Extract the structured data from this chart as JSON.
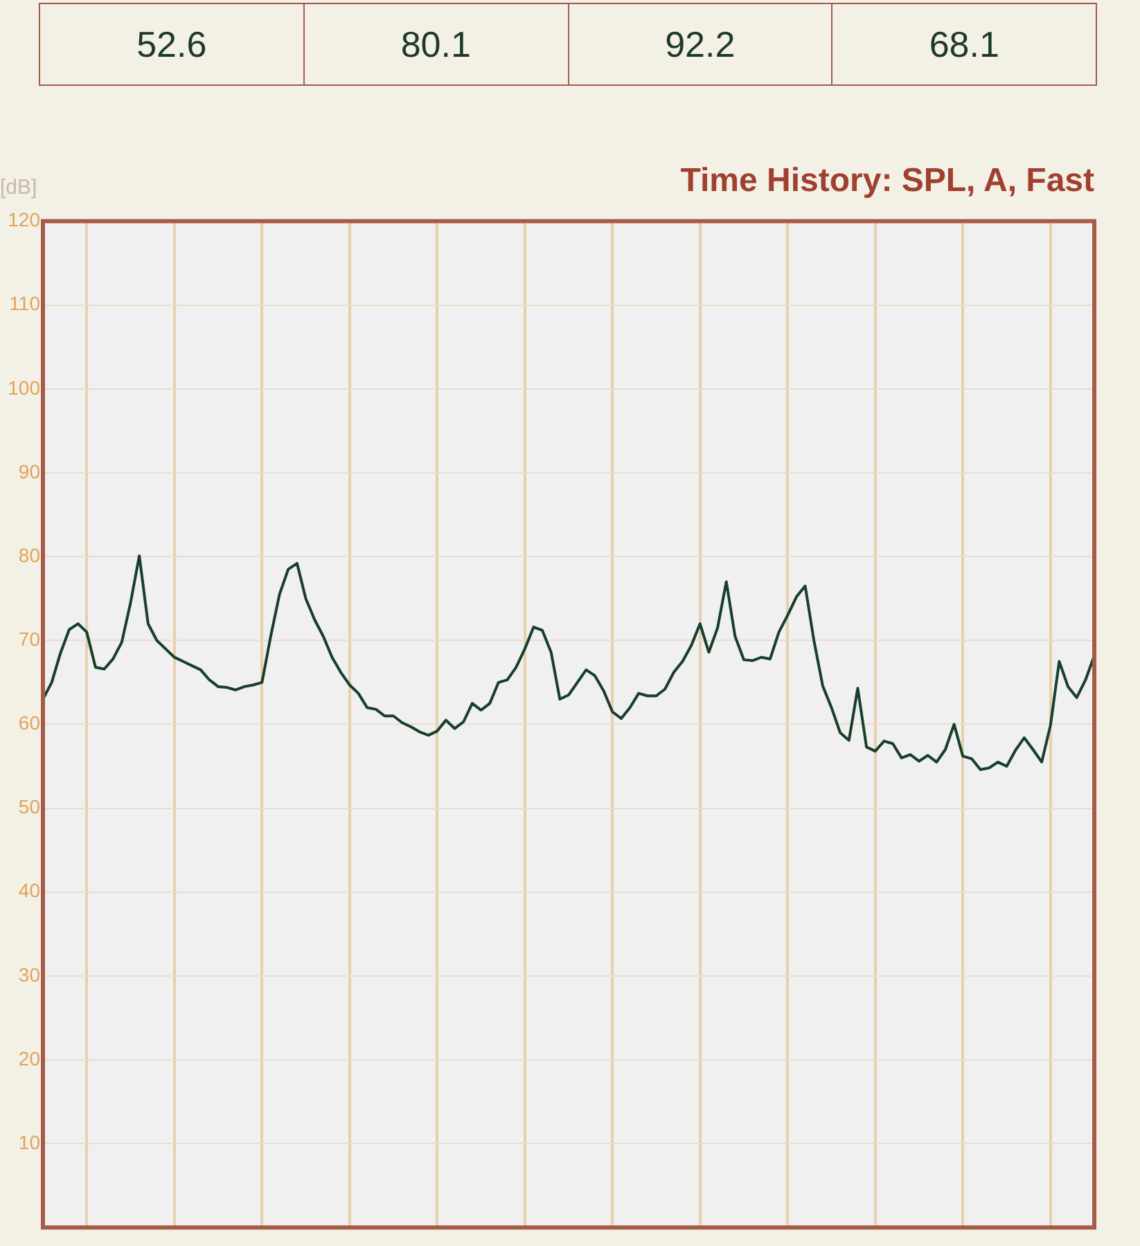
{
  "chart_data": [
    {
      "type": "other",
      "annotations": [
        "52.6",
        "80.1",
        "92.2",
        "68.1"
      ]
    },
    {
      "type": "line",
      "title": "Time History: SPL, A, Fast",
      "ylabel": "[dB]",
      "color": "#173f2b",
      "grid": true,
      "marker": "none",
      "line_style": "solid",
      "tick_labels": "y",
      "categories": [
        null,
        null,
        null,
        null,
        null,
        null,
        null,
        null,
        null,
        null,
        null,
        null,
        null,
        null,
        null,
        null,
        null,
        null,
        null,
        null,
        null,
        null,
        null,
        null,
        null,
        null,
        null,
        null,
        null,
        null,
        null,
        null,
        null,
        null,
        null,
        null,
        null,
        null,
        null,
        null,
        null,
        null,
        null,
        null,
        null,
        null,
        null,
        null,
        null,
        null,
        null,
        null,
        null,
        null,
        null,
        null,
        null,
        null,
        null,
        null,
        null,
        null,
        null,
        null,
        null,
        null,
        null,
        null,
        null,
        null,
        null,
        null,
        null,
        null,
        null,
        null,
        null,
        null,
        null,
        null,
        null,
        null,
        null,
        null,
        null,
        null,
        null,
        null,
        null,
        null,
        null,
        null,
        null,
        null,
        null,
        null,
        null,
        null,
        null,
        null,
        null,
        null,
        null,
        null,
        null,
        null,
        null,
        null,
        null,
        null,
        null,
        null,
        null,
        null,
        null,
        null,
        null,
        null,
        null,
        null,
        null
      ],
      "ylim": [
        0,
        120
      ],
      "yticks": [
        10,
        20,
        30,
        40,
        50,
        60,
        70,
        80,
        90,
        100,
        110,
        120
      ],
      "values": [
        63,
        65,
        68.5,
        71.3,
        72,
        71,
        66.8,
        66.6,
        67.8,
        69.8,
        74.5,
        80.1,
        72,
        70,
        69,
        68,
        67.5,
        67,
        66.5,
        65.3,
        64.5,
        64.4,
        64.1,
        64.5,
        64.7,
        65,
        70.5,
        75.5,
        78.5,
        79.2,
        75,
        72.5,
        70.5,
        68,
        66.2,
        64.7,
        63.7,
        62,
        61.8,
        61,
        61,
        60.2,
        59.7,
        59.1,
        58.7,
        59.2,
        60.5,
        59.5,
        60.3,
        62.5,
        61.7,
        62.5,
        65,
        65.3,
        66.8,
        69,
        71.6,
        71.2,
        68.6,
        63,
        63.5,
        65,
        66.5,
        65.8,
        64,
        61.5,
        60.7,
        62,
        63.7,
        63.4,
        63.4,
        64.2,
        66.2,
        67.5,
        69.4,
        72,
        68.6,
        71.5,
        77,
        70.5,
        67.7,
        67.6,
        68,
        67.8,
        71,
        73,
        75.2,
        76.5,
        70,
        64.6,
        62,
        59,
        58.1,
        64.3,
        57.3,
        56.8,
        58,
        57.7,
        56,
        56.4,
        55.6,
        56.3,
        55.5,
        57,
        60,
        56.2,
        55.9,
        54.6,
        54.8,
        55.5,
        55,
        56.9,
        58.4,
        57,
        55.5,
        59.9,
        67.5,
        64.5,
        63.2,
        65.3,
        68.2
      ]
    }
  ]
}
